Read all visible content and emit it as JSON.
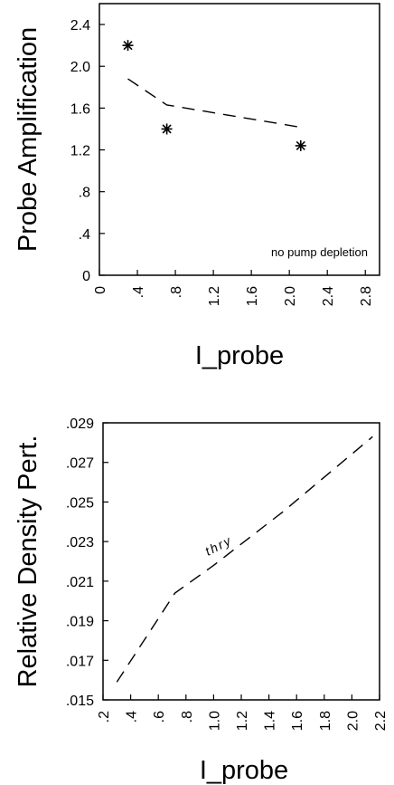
{
  "chart_data": [
    {
      "type": "scatter",
      "ylabel": "Probe Amplification",
      "xlabel": "I_probe",
      "xlim": [
        0,
        2.95
      ],
      "ylim": [
        0,
        2.6
      ],
      "xticks": [
        "0",
        ".4",
        ".8",
        "1.2",
        "1.6",
        "2.0",
        "2.4",
        "2.8"
      ],
      "xtick_values": [
        0,
        0.4,
        0.8,
        1.2,
        1.6,
        2.0,
        2.4,
        2.8
      ],
      "yticks": [
        "0",
        ".4",
        ".8",
        "1.2",
        "1.6",
        "2.0",
        "2.4"
      ],
      "ytick_values": [
        0,
        0.4,
        0.8,
        1.2,
        1.6,
        2.0,
        2.4
      ],
      "series": [
        {
          "kind": "markers",
          "marker": "asterisk",
          "x": [
            0.3,
            0.71,
            2.12
          ],
          "y": [
            2.2,
            1.4,
            1.24
          ]
        },
        {
          "kind": "dashed-line",
          "x": [
            0.3,
            0.71,
            2.1
          ],
          "y": [
            1.88,
            1.63,
            1.42
          ]
        }
      ],
      "annotation": "no pump depletion"
    },
    {
      "type": "line",
      "ylabel": "Relative Density Pert.",
      "xlabel": "I_probe",
      "xlim": [
        0.2,
        2.2
      ],
      "ylim": [
        0.015,
        0.029
      ],
      "xticks": [
        ".2",
        ".4",
        ".6",
        ".8",
        "1.0",
        "1.2",
        "1.4",
        "1.6",
        "1.8",
        "2.0",
        "2.2"
      ],
      "xtick_values": [
        0.2,
        0.4,
        0.6,
        0.8,
        1.0,
        1.2,
        1.4,
        1.6,
        1.8,
        2.0,
        2.2
      ],
      "yticks": [
        ".015",
        ".017",
        ".019",
        ".021",
        ".023",
        ".025",
        ".027",
        ".029"
      ],
      "ytick_values": [
        0.015,
        0.017,
        0.019,
        0.021,
        0.023,
        0.025,
        0.027,
        0.029
      ],
      "series": [
        {
          "kind": "dashed-line",
          "x": [
            0.3,
            0.72,
            1.0,
            1.5,
            2.15
          ],
          "y": [
            0.0159,
            0.0204,
            0.0218,
            0.0245,
            0.0283
          ]
        }
      ],
      "annotation": "thry"
    }
  ]
}
